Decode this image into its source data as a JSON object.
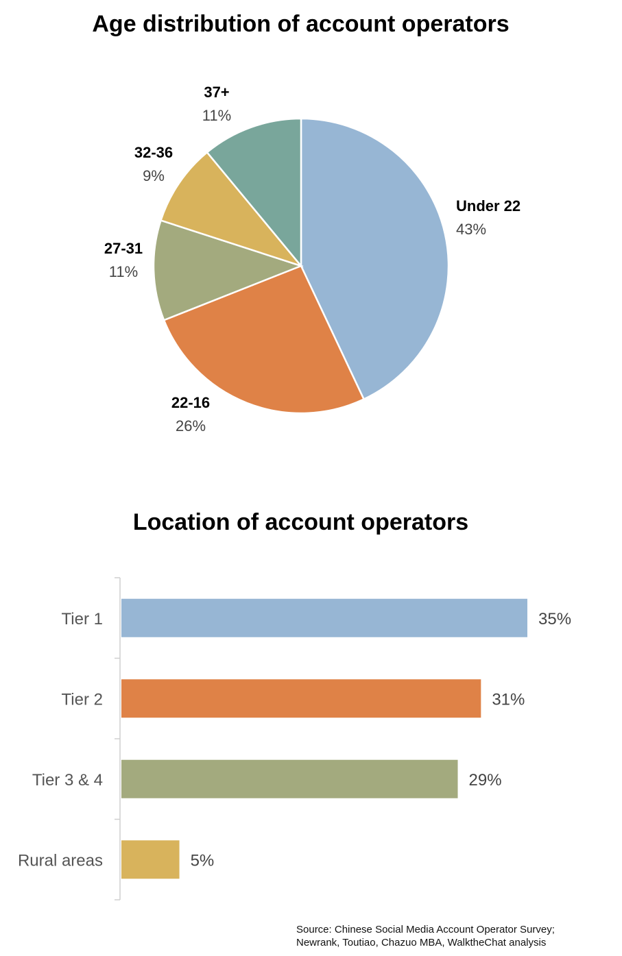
{
  "colors": {
    "blue": "#97B6D4",
    "orange": "#DF8247",
    "olive": "#A3AA7E",
    "gold": "#D8B35C",
    "teal": "#79A69B"
  },
  "chart_data": [
    {
      "type": "pie",
      "title": "Age distribution of account operators",
      "slices": [
        {
          "label": "Under 22",
          "value": 43,
          "display": "43%",
          "color": "#97B6D4"
        },
        {
          "label": "22-16",
          "value": 26,
          "display": "26%",
          "color": "#DF8247"
        },
        {
          "label": "27-31",
          "value": 11,
          "display": "11%",
          "color": "#A3AA7E"
        },
        {
          "label": "32-36",
          "value": 9,
          "display": "9%",
          "color": "#D8B35C"
        },
        {
          "label": "37+",
          "value": 11,
          "display": "11%",
          "color": "#79A69B"
        }
      ]
    },
    {
      "type": "bar",
      "orientation": "horizontal",
      "title": "Location of account operators",
      "categories": [
        "Tier 1",
        "Tier 2",
        "Tier 3 & 4",
        "Rural areas"
      ],
      "values": [
        35,
        31,
        29,
        5
      ],
      "value_labels": [
        "35%",
        "31%",
        "29%",
        "5%"
      ],
      "colors": [
        "#97B6D4",
        "#DF8247",
        "#A3AA7E",
        "#D8B35C"
      ],
      "xlim": [
        0,
        35
      ]
    }
  ],
  "source": {
    "line1": "Source: Chinese Social Media Account Operator Survey;",
    "line2": "Newrank, Toutiao, Chazuo MBA, WalktheChat analysis"
  }
}
